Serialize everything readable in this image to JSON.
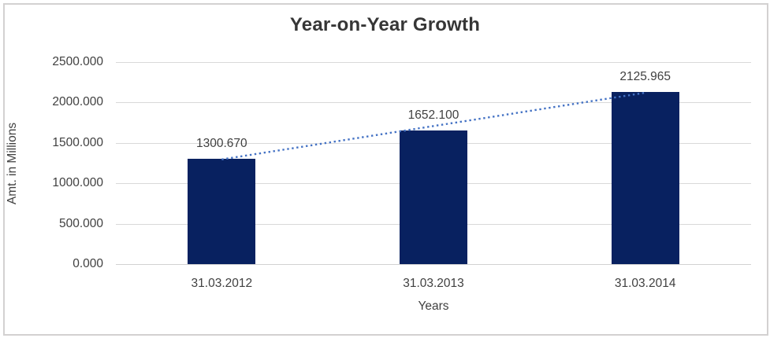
{
  "chart_data": {
    "type": "bar",
    "title": "Year-on-Year Growth",
    "categories": [
      "31.03.2012",
      "31.03.2013",
      "31.03.2014"
    ],
    "values": [
      1300.67,
      1652.1,
      2125.965
    ],
    "data_labels": [
      "1300.670",
      "1652.100",
      "2125.965"
    ],
    "xlabel": "Years",
    "ylabel": "Amt. in Millions",
    "y_ticks": [
      "0.000",
      "500.000",
      "1000.000",
      "1500.000",
      "2000.000",
      "2500.000"
    ],
    "y_tick_values": [
      0,
      500,
      1000,
      1500,
      2000,
      2500
    ],
    "ylim": [
      0,
      2500
    ],
    "grid": true,
    "legend": "none",
    "colors": {
      "bar": "#082160",
      "trendline": "#4472c4",
      "gridline": "#d9d9d9",
      "axis_line": "#d2d2d2",
      "text": "#404040",
      "title": "#363636",
      "frame_border": "#d3d1d1",
      "background": "#ffffff"
    },
    "trendline": {
      "style": "dotted",
      "from_category": "31.03.2012",
      "to_category": "31.03.2014"
    }
  }
}
